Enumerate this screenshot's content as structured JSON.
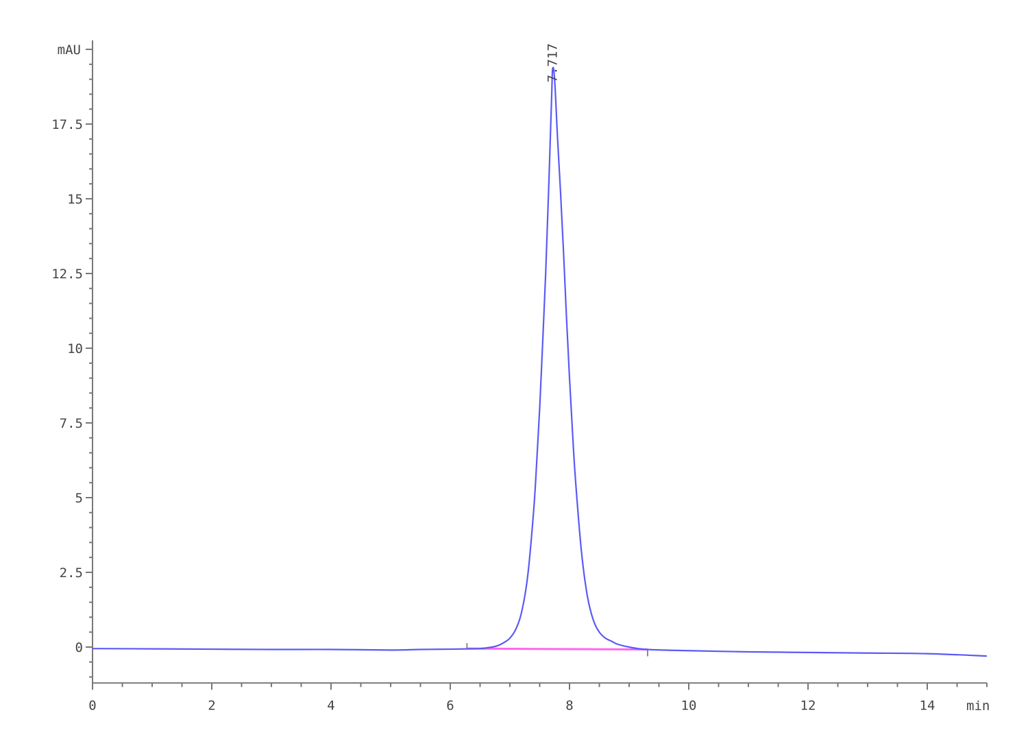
{
  "chart_data": {
    "type": "line",
    "title": "",
    "xlabel": "min",
    "ylabel": "mAU",
    "xlim": [
      0,
      15
    ],
    "ylim": [
      -1.2,
      20.3
    ],
    "xticks": [
      0,
      2,
      4,
      6,
      8,
      10,
      12,
      14
    ],
    "xtick_labels": [
      "0",
      "2",
      "4",
      "6",
      "8",
      "10",
      "12",
      "14"
    ],
    "yticks": [
      0,
      2.5,
      5,
      7.5,
      10,
      12.5,
      15,
      17.5
    ],
    "ytick_labels": [
      "0",
      "2.5",
      "5",
      "7.5",
      "10",
      "12.5",
      "15",
      "17.5"
    ],
    "grid": false,
    "series": [
      {
        "color": "#5a5af5",
        "x": [
          0,
          1,
          2,
          3,
          4,
          5,
          5.5,
          6,
          6.3,
          6.5,
          6.7,
          6.8,
          6.9,
          7.0,
          7.1,
          7.2,
          7.3,
          7.4,
          7.45,
          7.5,
          7.55,
          7.6,
          7.65,
          7.7,
          7.717,
          7.75,
          7.8,
          7.85,
          7.9,
          7.95,
          8.0,
          8.05,
          8.1,
          8.2,
          8.3,
          8.4,
          8.5,
          8.6,
          8.7,
          8.8,
          9.0,
          9.3,
          10,
          11,
          12,
          13,
          14,
          15
        ],
        "y": [
          -0.05,
          -0.06,
          -0.07,
          -0.08,
          -0.08,
          -0.1,
          -0.08,
          -0.07,
          -0.06,
          -0.05,
          0.0,
          0.05,
          0.15,
          0.3,
          0.6,
          1.2,
          2.4,
          4.6,
          6.2,
          8.0,
          10.2,
          12.5,
          15.3,
          18.4,
          19.35,
          19.0,
          17.0,
          15.2,
          13.2,
          11.0,
          9.0,
          7.2,
          5.6,
          3.2,
          1.7,
          0.9,
          0.5,
          0.3,
          0.2,
          0.1,
          0.0,
          -0.08,
          -0.12,
          -0.16,
          -0.18,
          -0.2,
          -0.22,
          -0.3
        ]
      }
    ],
    "baseline": {
      "color": "#ff66ee",
      "x": [
        6.28,
        9.31
      ],
      "y": [
        -0.05,
        -0.08
      ]
    },
    "annotations": [
      {
        "text": "7.717",
        "x": 7.717,
        "y": 19.35
      }
    ]
  }
}
